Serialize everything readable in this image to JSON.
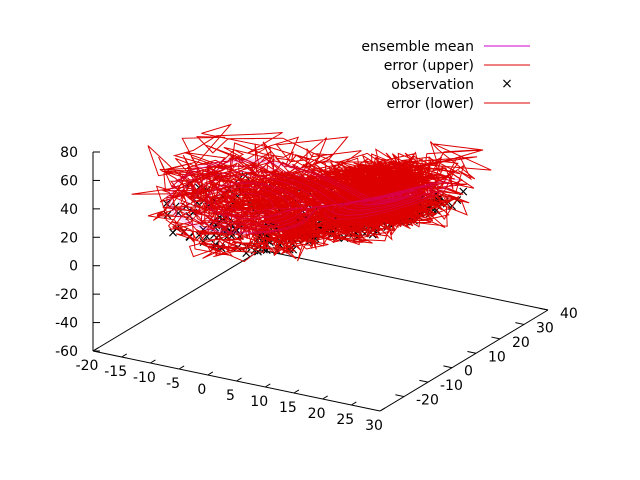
{
  "chart_data": {
    "type": "scatter",
    "plot_kind": "3d-lorenz-attractor",
    "title": "",
    "xlabel": "",
    "ylabel": "",
    "zlabel": "",
    "xlim": [
      -20,
      30
    ],
    "ylim": [
      -30,
      40
    ],
    "zlim": [
      -60,
      80
    ],
    "x_ticks": [
      "-20",
      "-15",
      "-10",
      "-5",
      "0",
      "5",
      "10",
      "15",
      "20",
      "25",
      "30"
    ],
    "y_ticks": [
      "-20",
      "-10",
      "0",
      "10",
      "20",
      "30",
      "40"
    ],
    "z_ticks": [
      "80",
      "60",
      "40",
      "20",
      "0",
      "-20",
      "-40",
      "-60"
    ],
    "grid": false,
    "legend_position": "top-right",
    "legend": [
      {
        "label": "ensemble mean",
        "style": "line",
        "color": "#cc00cc"
      },
      {
        "label": "error (upper)",
        "style": "line",
        "color": "#dd0000"
      },
      {
        "label": "observation",
        "style": "marker",
        "marker": "×",
        "color": "#000000"
      },
      {
        "label": "error (lower)",
        "style": "line",
        "color": "#dd0000"
      }
    ],
    "series": [
      {
        "name": "observation",
        "color": "#000000",
        "observed_x_range": [
          -20,
          30
        ],
        "observed_y_range": [
          -20,
          30
        ],
        "observed_z_range": [
          0,
          50
        ]
      },
      {
        "name": "error (upper)",
        "color": "#dd0000"
      },
      {
        "name": "error (lower)",
        "color": "#dd0000"
      },
      {
        "name": "ensemble mean",
        "color": "#cc00cc"
      }
    ]
  }
}
